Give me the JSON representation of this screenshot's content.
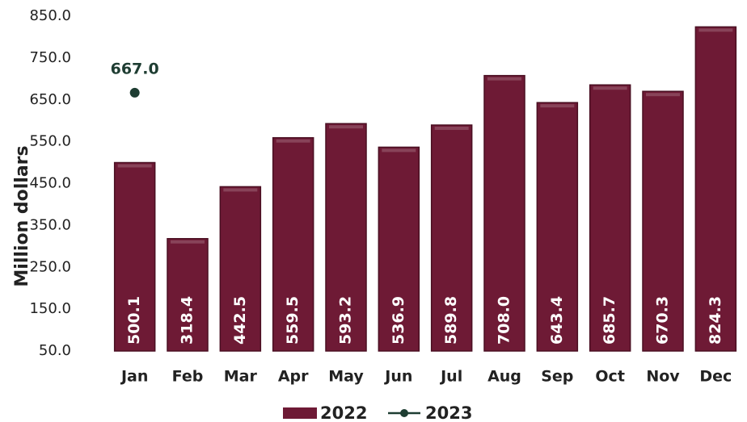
{
  "chart_data": {
    "type": "bar",
    "y_axis_label": "Million dollars",
    "categories": [
      "Jan",
      "Feb",
      "Mar",
      "Apr",
      "May",
      "Jun",
      "Jul",
      "Aug",
      "Sep",
      "Oct",
      "Nov",
      "Dec"
    ],
    "series": [
      {
        "name": "2022",
        "type": "bar",
        "color": "#6e1a35",
        "values": [
          500.1,
          318.4,
          442.5,
          559.5,
          593.2,
          536.9,
          589.8,
          708.0,
          643.4,
          685.7,
          670.3,
          824.3
        ],
        "value_labels": [
          "500.1",
          "318.4",
          "442.5",
          "559.5",
          "593.2",
          "536.9",
          "589.8",
          "708.0",
          "643.4",
          "685.7",
          "670.3",
          "824.3"
        ]
      },
      {
        "name": "2023",
        "type": "line",
        "color": "#1e3d32",
        "values": [
          667.0,
          null,
          null,
          null,
          null,
          null,
          null,
          null,
          null,
          null,
          null,
          null
        ],
        "value_labels": [
          "667.0",
          null,
          null,
          null,
          null,
          null,
          null,
          null,
          null,
          null,
          null,
          null
        ]
      }
    ],
    "ylim": [
      50,
      850
    ],
    "yticks": [
      {
        "value": 50,
        "label": "50.0"
      },
      {
        "value": 150,
        "label": "150.0"
      },
      {
        "value": 250,
        "label": "250.0"
      },
      {
        "value": 350,
        "label": "350.0"
      },
      {
        "value": 450,
        "label": "450.0"
      },
      {
        "value": 550,
        "label": "550.0"
      },
      {
        "value": 650,
        "label": "650.0"
      },
      {
        "value": 750,
        "label": "750.0"
      },
      {
        "value": 850,
        "label": "850.0"
      }
    ],
    "grid": false,
    "legend": "bottom"
  }
}
